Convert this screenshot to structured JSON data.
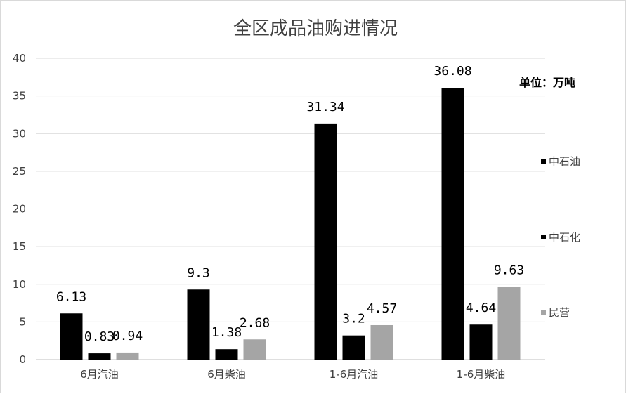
{
  "chart_data": {
    "type": "bar",
    "title": "全区成品油购进情况",
    "unit_note": "单位：万吨",
    "categories": [
      "6月汽油",
      "6月柴油",
      "1-6月汽油",
      "1-6月柴油"
    ],
    "series": [
      {
        "name": "中石油",
        "values": [
          6.13,
          9.3,
          31.34,
          36.08
        ],
        "labels": [
          "6.13",
          "9.3",
          "31.34",
          "36.08"
        ],
        "color": "#000000"
      },
      {
        "name": "中石化",
        "values": [
          0.83,
          1.38,
          3.2,
          4.64
        ],
        "labels": [
          "0.83",
          "1.38",
          "3.2",
          "4.64"
        ],
        "color": "#000000"
      },
      {
        "name": "民营",
        "values": [
          0.94,
          2.68,
          4.57,
          9.63
        ],
        "labels": [
          "0.94",
          "2.68",
          "4.57",
          "9.63"
        ],
        "color": "#a5a5a5"
      }
    ],
    "ylim": [
      0,
      40
    ],
    "yticks": [
      "0",
      "5",
      "10",
      "15",
      "20",
      "25",
      "30",
      "35",
      "40"
    ],
    "grid": true,
    "legend_position": "right"
  }
}
